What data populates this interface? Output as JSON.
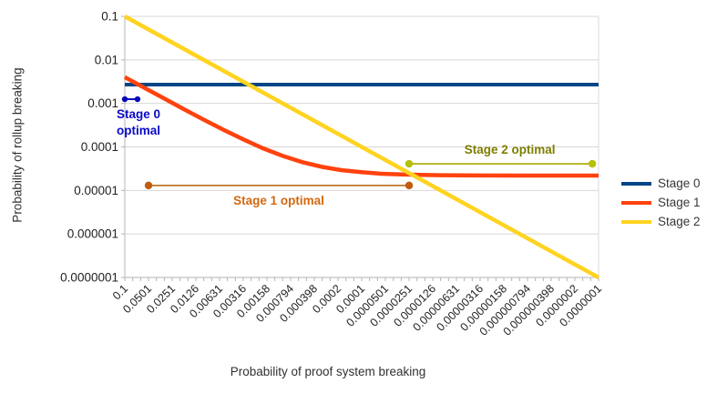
{
  "chart_data": {
    "type": "line",
    "title": "",
    "xlabel": "Probability of proof system breaking",
    "ylabel": "Probability of rollup breaking",
    "x_axis": {
      "scale": "log",
      "max": 0.1,
      "min": 1e-07,
      "direction": "descending",
      "minor_ticks_per_label": 3,
      "tick_labels": [
        "0.1",
        "0.0501",
        "0.0251",
        "0.0126",
        "0.00631",
        "0.00316",
        "0.00158",
        "0.000794",
        "0.000398",
        "0.0002",
        "0.0001",
        "0.0000501",
        "0.0000251",
        "0.0000126",
        "0.00000631",
        "0.00000316",
        "0.00000158",
        "0.000000794",
        "0.000000398",
        "0.0000002",
        "0.0000001"
      ]
    },
    "y_axis": {
      "scale": "log",
      "max": 0.1,
      "min": 1e-07,
      "tick_labels": [
        "0.1",
        "0.01",
        "0.001",
        "0.0001",
        "0.00001",
        "0.000001",
        "0.0000001"
      ]
    },
    "grid": "horizontal-decades",
    "legend_position": "right",
    "legend": [
      "Stage 0",
      "Stage 1",
      "Stage 2"
    ],
    "series": [
      {
        "name": "Stage 0",
        "color": "#004586",
        "width": 4,
        "points": [
          [
            0.1,
            0.0027
          ],
          [
            1e-07,
            0.0027
          ]
        ]
      },
      {
        "name": "Stage 1",
        "color": "#ff420e",
        "width": 4.5,
        "points": [
          [
            0.1,
            0.00402
          ],
          [
            0.0562,
            0.00227
          ],
          [
            0.0316,
            0.00129
          ],
          [
            0.0178,
            0.000733
          ],
          [
            0.01,
            0.000422
          ],
          [
            0.00562,
            0.000247
          ],
          [
            0.00316,
            0.000149
          ],
          [
            0.00178,
            9.31e-05
          ],
          [
            0.001,
            6.2e-05
          ],
          [
            0.000562,
            4.45e-05
          ],
          [
            0.000316,
            3.47e-05
          ],
          [
            0.000178,
            2.91e-05
          ],
          [
            0.0001,
            2.62e-05
          ],
          [
            5.62e-05,
            2.42e-05
          ],
          [
            3.16e-05,
            2.33e-05
          ],
          [
            1.78e-05,
            2.27e-05
          ],
          [
            1e-05,
            2.24e-05
          ],
          [
            3.16e-06,
            2.21e-05
          ],
          [
            1e-06,
            2.2e-05
          ],
          [
            1e-07,
            2.2e-05
          ]
        ]
      },
      {
        "name": "Stage 2",
        "color": "#ffd320",
        "width": 4.5,
        "points": [
          [
            0.1,
            0.1
          ],
          [
            1e-07,
            1e-07
          ]
        ]
      }
    ],
    "annotations": [
      {
        "id": "stage-0-optimal",
        "label_lines": [
          "Stage 0",
          "optimal"
        ],
        "text_color": "#0a0ac8",
        "line_color": "#0a0ac8",
        "dot_color": "#0808b4",
        "x_start": 0.1,
        "x_end": 0.069,
        "y": 0.00125,
        "dot_r": 3.2,
        "line_w": 2,
        "label_pos": "below",
        "label_dx": 8
      },
      {
        "id": "stage-1-optimal",
        "label_lines": [
          "Stage 1 optimal"
        ],
        "text_color": "#d2690e",
        "line_color": "#b45f06",
        "dot_color": "#c05c0a",
        "x_start": 0.0501,
        "x_end": 2.51e-05,
        "y": 1.3e-05,
        "dot_r": 4.2,
        "line_w": 1.6,
        "label_pos": "below",
        "label_dx": 0
      },
      {
        "id": "stage-2-optimal",
        "label_lines": [
          "Stage 2 optimal"
        ],
        "text_color": "#7e7e00",
        "line_color": "#a8a800",
        "dot_color": "#b4c00a",
        "x_start": 2.51e-05,
        "x_end": 1.2e-07,
        "y": 4.1e-05,
        "dot_r": 4.2,
        "line_w": 1.6,
        "label_pos": "above",
        "label_dx": 10
      }
    ],
    "style": {
      "grid_color": "#d8d8d8",
      "axis_color": "#b4b4b4",
      "tick_text_color": "#222222"
    }
  }
}
